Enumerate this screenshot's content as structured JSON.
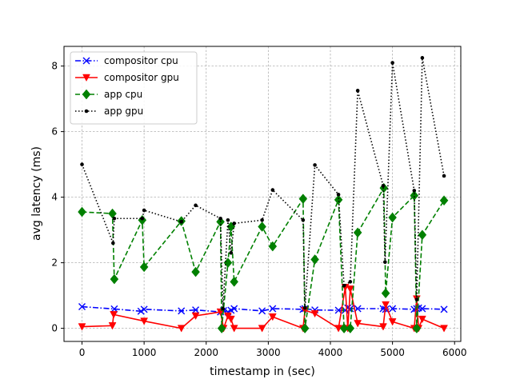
{
  "chart_data": {
    "type": "line",
    "xlabel": "timestamp in (sec)",
    "ylabel": "avg latency (ms)",
    "xlim": [
      -290,
      6100
    ],
    "ylim": [
      -0.4,
      8.6
    ],
    "x_ticks": [
      0,
      1000,
      2000,
      3000,
      4000,
      5000,
      6000
    ],
    "y_ticks": [
      0,
      2,
      4,
      6,
      8
    ],
    "grid": true,
    "legend_position": "top-left",
    "series": [
      {
        "name": "compositor cpu",
        "color": "#0000ff",
        "line_style": "dashdot",
        "marker": "x",
        "x": [
          0,
          520,
          950,
          1000,
          1600,
          1830,
          2230,
          2280,
          2350,
          2400,
          2450,
          2900,
          3070,
          3560,
          3590,
          3750,
          4130,
          4240,
          4280,
          4320,
          4440,
          4850,
          4890,
          5000,
          5350,
          5390,
          5420,
          5480,
          5830
        ],
        "values": [
          0.66,
          0.59,
          0.52,
          0.58,
          0.53,
          0.56,
          0.5,
          0.54,
          0.5,
          0.55,
          0.6,
          0.53,
          0.6,
          0.58,
          0.6,
          0.56,
          0.55,
          0.55,
          0.62,
          0.6,
          0.6,
          0.6,
          0.58,
          0.6,
          0.58,
          0.6,
          0.62,
          0.6,
          0.58
        ]
      },
      {
        "name": "compositor gpu",
        "color": "#ff0000",
        "line_style": "solid",
        "marker": "triangle-down",
        "x": [
          0,
          490,
          510,
          1000,
          1600,
          1830,
          2230,
          2280,
          2350,
          2400,
          2450,
          2900,
          3070,
          3560,
          3590,
          3750,
          4130,
          4240,
          4280,
          4320,
          4440,
          4850,
          4890,
          5000,
          5350,
          5390,
          5420,
          5480,
          5830
        ],
        "values": [
          0.05,
          0.08,
          0.42,
          0.22,
          0.0,
          0.38,
          0.5,
          0.0,
          0.38,
          0.28,
          0.0,
          0.0,
          0.35,
          0.0,
          0.55,
          0.45,
          0.0,
          1.25,
          0.0,
          1.2,
          0.15,
          0.05,
          0.72,
          0.2,
          0.0,
          0.9,
          0.0,
          0.28,
          0.0
        ]
      },
      {
        "name": "app cpu",
        "color": "#008000",
        "line_style": "dashed",
        "marker": "diamond",
        "x": [
          0,
          490,
          520,
          970,
          1000,
          1600,
          1830,
          2230,
          2250,
          2350,
          2400,
          2450,
          2900,
          3070,
          3560,
          3590,
          3750,
          4130,
          4220,
          4320,
          4440,
          4860,
          4890,
          5000,
          5350,
          5390,
          5480,
          5830
        ],
        "values": [
          3.55,
          3.5,
          1.5,
          3.3,
          1.87,
          3.27,
          1.72,
          3.25,
          0.0,
          2.0,
          3.1,
          1.42,
          3.1,
          2.5,
          3.95,
          0.0,
          2.1,
          3.92,
          0.0,
          0.0,
          2.92,
          4.28,
          1.07,
          3.38,
          4.05,
          0.0,
          2.85,
          3.9
        ]
      },
      {
        "name": "app gpu",
        "color": "#000000",
        "line_style": "dotted",
        "marker": "point",
        "x": [
          0,
          500,
          520,
          970,
          1000,
          1600,
          1830,
          2230,
          2270,
          2350,
          2400,
          2450,
          2900,
          3070,
          3560,
          3590,
          3750,
          4130,
          4220,
          4320,
          4440,
          4850,
          4880,
          5000,
          5350,
          5390,
          5480,
          5830
        ],
        "values": [
          5.0,
          2.6,
          3.35,
          3.35,
          3.6,
          3.25,
          3.75,
          3.35,
          0.6,
          3.3,
          2.3,
          3.2,
          3.3,
          4.22,
          3.3,
          0.62,
          4.98,
          4.08,
          1.3,
          1.42,
          7.25,
          4.35,
          2.02,
          8.1,
          4.2,
          0.88,
          8.25,
          4.65
        ]
      }
    ]
  }
}
